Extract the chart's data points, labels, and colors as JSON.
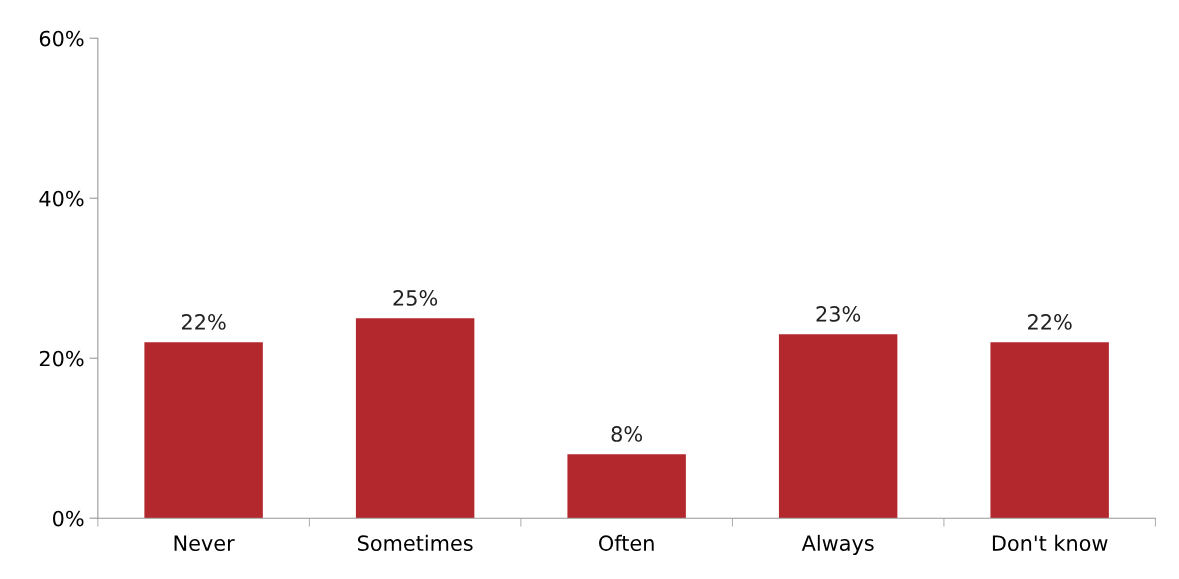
{
  "chart_data": {
    "type": "bar",
    "categories": [
      "Never",
      "Sometimes",
      "Often",
      "Always",
      "Don't know"
    ],
    "values": [
      22,
      25,
      8,
      23,
      22
    ],
    "value_labels": [
      "22%",
      "25%",
      "8%",
      "23%",
      "22%"
    ],
    "color": "#b3282d",
    "ylim": [
      0,
      60
    ],
    "yticks": [
      {
        "value": 0,
        "label": "0%"
      },
      {
        "value": 20,
        "label": "20%"
      },
      {
        "value": 40,
        "label": "40%"
      },
      {
        "value": 60,
        "label": "60%"
      }
    ],
    "grid": false
  }
}
